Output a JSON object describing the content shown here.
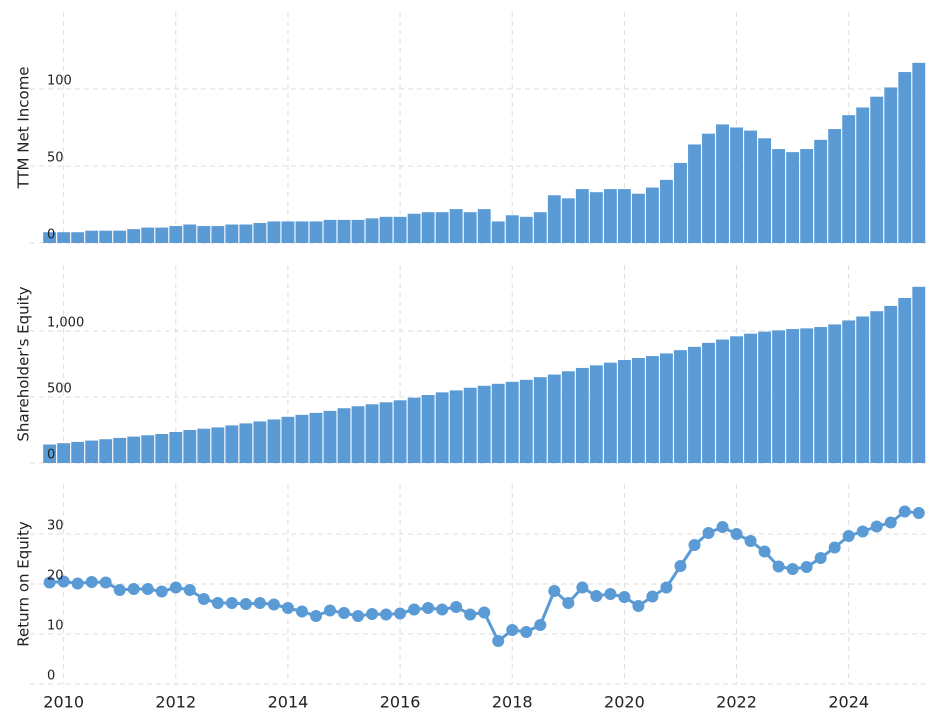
{
  "chart_data": [
    {
      "type": "bar",
      "ylabel": "TTM Net Income",
      "color": "#5b9bd5",
      "grid": true,
      "x": [
        2009.75,
        2010,
        2010.25,
        2010.5,
        2010.75,
        2011,
        2011.25,
        2011.5,
        2011.75,
        2012,
        2012.25,
        2012.5,
        2012.75,
        2013,
        2013.25,
        2013.5,
        2013.75,
        2014,
        2014.25,
        2014.5,
        2014.75,
        2015,
        2015.25,
        2015.5,
        2015.75,
        2016,
        2016.25,
        2016.5,
        2016.75,
        2017,
        2017.25,
        2017.5,
        2017.75,
        2018,
        2018.25,
        2018.5,
        2018.75,
        2019,
        2019.25,
        2019.5,
        2019.75,
        2020,
        2020.25,
        2020.5,
        2020.75,
        2021,
        2021.25,
        2021.5,
        2021.75,
        2022,
        2022.25,
        2022.5,
        2022.75,
        2023,
        2023.25,
        2023.5,
        2023.75,
        2024,
        2024.25,
        2024.5,
        2024.75,
        2025,
        2025.25
      ],
      "values": [
        7,
        7,
        7,
        8,
        8,
        8,
        9,
        10,
        10,
        11,
        12,
        11,
        11,
        12,
        12,
        13,
        14,
        14,
        14,
        14,
        15,
        15,
        15,
        16,
        17,
        17,
        19,
        20,
        20,
        22,
        20,
        22,
        14,
        18,
        17,
        20,
        31,
        29,
        35,
        33,
        35,
        35,
        32,
        36,
        41,
        52,
        64,
        71,
        77,
        75,
        73,
        68,
        61,
        59,
        61,
        67,
        74,
        83,
        88,
        95,
        101,
        111,
        117
      ],
      "xlim": [
        2009.4,
        2025.45
      ],
      "xticks": [
        2010,
        2012,
        2014,
        2016,
        2018,
        2020,
        2022,
        2024
      ],
      "ylim": [
        0,
        150
      ],
      "yticks": [
        0,
        50,
        100
      ]
    },
    {
      "type": "bar",
      "ylabel": "Shareholder's Equity",
      "color": "#5b9bd5",
      "grid": true,
      "x": [
        2009.75,
        2010,
        2010.25,
        2010.5,
        2010.75,
        2011,
        2011.25,
        2011.5,
        2011.75,
        2012,
        2012.25,
        2012.5,
        2012.75,
        2013,
        2013.25,
        2013.5,
        2013.75,
        2014,
        2014.25,
        2014.5,
        2014.75,
        2015,
        2015.25,
        2015.5,
        2015.75,
        2016,
        2016.25,
        2016.5,
        2016.75,
        2017,
        2017.25,
        2017.5,
        2017.75,
        2018,
        2018.25,
        2018.5,
        2018.75,
        2019,
        2019.25,
        2019.5,
        2019.75,
        2020,
        2020.25,
        2020.5,
        2020.75,
        2021,
        2021.25,
        2021.5,
        2021.75,
        2022,
        2022.25,
        2022.5,
        2022.75,
        2023,
        2023.25,
        2023.5,
        2023.75,
        2024,
        2024.25,
        2024.5,
        2024.75,
        2025,
        2025.25
      ],
      "values": [
        140,
        150,
        160,
        170,
        180,
        190,
        200,
        210,
        220,
        235,
        250,
        260,
        270,
        285,
        300,
        315,
        330,
        350,
        365,
        380,
        395,
        415,
        430,
        445,
        460,
        475,
        495,
        515,
        535,
        550,
        570,
        585,
        600,
        615,
        630,
        650,
        670,
        695,
        720,
        740,
        760,
        780,
        795,
        810,
        830,
        855,
        880,
        910,
        935,
        960,
        980,
        995,
        1005,
        1015,
        1020,
        1030,
        1050,
        1080,
        1110,
        1150,
        1190,
        1250,
        1335
      ],
      "xlim": [
        2009.4,
        2025.45
      ],
      "xticks": [
        2010,
        2012,
        2014,
        2016,
        2018,
        2020,
        2022,
        2024
      ],
      "ylim": [
        0,
        1500
      ],
      "yticks": [
        0,
        500,
        {
          "value": 1000,
          "label": "1,000"
        }
      ]
    },
    {
      "type": "line",
      "ylabel": "Return on Equity",
      "color": "#5b9bd5",
      "grid": true,
      "x": [
        2009.75,
        2010,
        2010.25,
        2010.5,
        2010.75,
        2011,
        2011.25,
        2011.5,
        2011.75,
        2012,
        2012.25,
        2012.5,
        2012.75,
        2013,
        2013.25,
        2013.5,
        2013.75,
        2014,
        2014.25,
        2014.5,
        2014.75,
        2015,
        2015.25,
        2015.5,
        2015.75,
        2016,
        2016.25,
        2016.5,
        2016.75,
        2017,
        2017.25,
        2017.5,
        2017.75,
        2018,
        2018.25,
        2018.5,
        2018.75,
        2019,
        2019.25,
        2019.5,
        2019.75,
        2020,
        2020.25,
        2020.5,
        2020.75,
        2021,
        2021.25,
        2021.5,
        2021.75,
        2022,
        2022.25,
        2022.5,
        2022.75,
        2023,
        2023.25,
        2023.5,
        2023.75,
        2024,
        2024.25,
        2024.5,
        2024.75,
        2025,
        2025.25
      ],
      "values": [
        20.3,
        20.5,
        20.1,
        20.4,
        20.3,
        18.8,
        19.0,
        19.0,
        18.5,
        19.3,
        18.8,
        17.0,
        16.2,
        16.2,
        16.0,
        16.2,
        15.9,
        15.2,
        14.5,
        13.6,
        14.7,
        14.2,
        13.6,
        14.0,
        13.9,
        14.1,
        14.9,
        15.2,
        14.9,
        15.4,
        13.9,
        14.3,
        8.6,
        10.8,
        10.4,
        11.8,
        18.6,
        16.2,
        19.3,
        17.6,
        18.0,
        17.4,
        15.6,
        17.5,
        19.3,
        23.6,
        27.8,
        30.2,
        31.4,
        30.0,
        28.6,
        26.5,
        23.5,
        23.0,
        23.4,
        25.2,
        27.3,
        29.6,
        30.5,
        31.5,
        32.3,
        34.5,
        34.2
      ],
      "xlim": [
        2009.4,
        2025.45
      ],
      "xticks": [
        2010,
        2012,
        2014,
        2016,
        2018,
        2020,
        2022,
        2024
      ],
      "ylim": [
        0,
        40
      ],
      "yticks": [
        0,
        10,
        20,
        30
      ]
    }
  ]
}
